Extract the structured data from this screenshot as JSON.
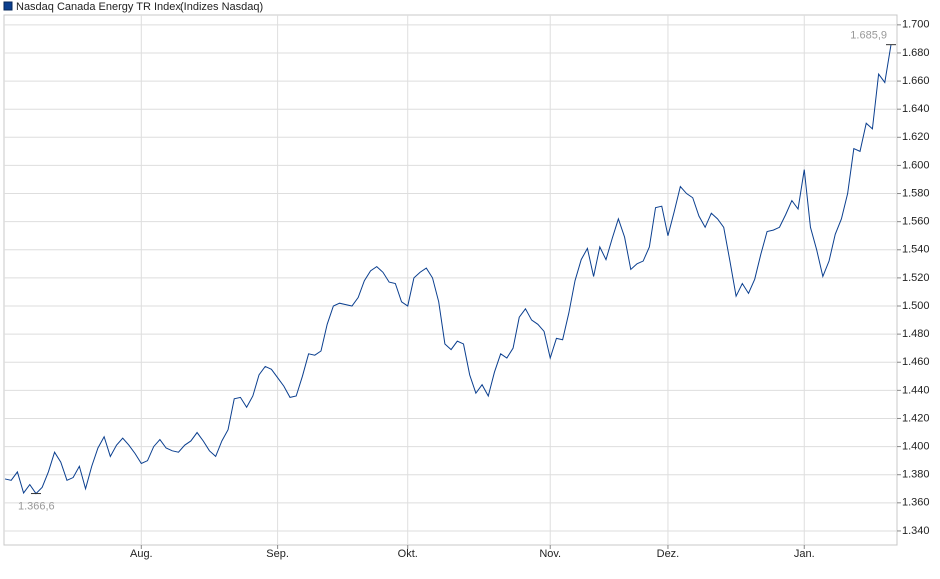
{
  "chart_data": {
    "type": "line",
    "title": "(Indizes Nasdaq)",
    "categories": [
      null,
      null,
      null,
      null,
      null,
      null,
      null,
      null,
      null,
      null,
      null,
      null,
      null,
      null,
      null,
      null,
      null,
      null,
      null,
      null,
      null,
      null,
      "Aug.",
      null,
      null,
      null,
      null,
      null,
      null,
      null,
      null,
      null,
      null,
      null,
      null,
      null,
      null,
      null,
      null,
      null,
      null,
      null,
      null,
      null,
      "Sep.",
      null,
      null,
      null,
      null,
      null,
      null,
      null,
      null,
      null,
      null,
      null,
      null,
      null,
      null,
      null,
      null,
      null,
      null,
      null,
      null,
      "Okt.",
      null,
      null,
      null,
      null,
      null,
      null,
      null,
      null,
      null,
      null,
      null,
      null,
      null,
      null,
      null,
      null,
      null,
      null,
      null,
      null,
      null,
      null,
      "Nov.",
      null,
      null,
      null,
      null,
      null,
      null,
      null,
      null,
      null,
      null,
      null,
      null,
      null,
      null,
      null,
      null,
      null,
      null,
      "Dez.",
      null,
      null,
      null,
      null,
      null,
      null,
      null,
      null,
      null,
      null,
      null,
      null,
      null,
      null,
      null,
      null,
      null,
      null,
      null,
      null,
      null,
      "Jan.",
      null,
      null,
      null,
      null,
      null,
      null,
      null,
      null,
      null,
      null,
      null,
      null,
      null,
      null
    ],
    "series": [
      {
        "name": "Nasdaq Canada Energy TR Index",
        "color": "#0b3f8f",
        "values": [
          1.377,
          1.376,
          1.382,
          1.367,
          1.373,
          1.3666,
          1.371,
          1.382,
          1.396,
          1.389,
          1.376,
          1.378,
          1.386,
          1.37,
          1.386,
          1.399,
          1.407,
          1.393,
          1.401,
          1.406,
          1.401,
          1.395,
          1.388,
          1.39,
          1.4,
          1.405,
          1.399,
          1.397,
          1.396,
          1.401,
          1.404,
          1.41,
          1.404,
          1.397,
          1.393,
          1.404,
          1.412,
          1.434,
          1.435,
          1.428,
          1.436,
          1.451,
          1.457,
          1.455,
          1.449,
          1.443,
          1.435,
          1.436,
          1.45,
          1.466,
          1.465,
          1.468,
          1.487,
          1.5,
          1.502,
          1.501,
          1.5,
          1.506,
          1.518,
          1.525,
          1.528,
          1.524,
          1.517,
          1.516,
          1.503,
          1.5,
          1.52,
          1.524,
          1.527,
          1.52,
          1.503,
          1.473,
          1.469,
          1.475,
          1.473,
          1.451,
          1.438,
          1.444,
          1.436,
          1.453,
          1.466,
          1.463,
          1.47,
          1.492,
          1.498,
          1.49,
          1.487,
          1.482,
          1.463,
          1.477,
          1.476,
          1.495,
          1.518,
          1.533,
          1.541,
          1.521,
          1.542,
          1.533,
          1.548,
          1.562,
          1.549,
          1.526,
          1.53,
          1.532,
          1.542,
          1.57,
          1.571,
          1.55,
          1.567,
          1.585,
          1.58,
          1.577,
          1.564,
          1.556,
          1.566,
          1.562,
          1.556,
          1.532,
          1.507,
          1.516,
          1.509,
          1.519,
          1.537,
          1.553,
          1.554,
          1.556,
          1.565,
          1.575,
          1.569,
          1.597,
          1.556,
          1.54,
          1.521,
          1.532,
          1.551,
          1.562,
          1.58,
          1.612,
          1.61,
          1.63,
          1.626,
          1.665,
          1.659,
          1.6859
        ],
        "value_labels": [
          null,
          null,
          null,
          null,
          null,
          "1.366,6",
          null,
          null,
          null,
          null,
          null,
          null,
          null,
          null,
          null,
          null,
          null,
          null,
          null,
          null,
          null,
          null,
          null,
          null,
          null,
          null,
          null,
          null,
          null,
          null,
          null,
          null,
          null,
          null,
          null,
          null,
          null,
          null,
          null,
          null,
          null,
          null,
          null,
          null,
          null,
          null,
          null,
          null,
          null,
          null,
          null,
          null,
          null,
          null,
          null,
          null,
          null,
          null,
          null,
          null,
          null,
          null,
          null,
          null,
          null,
          null,
          null,
          null,
          null,
          null,
          null,
          null,
          null,
          null,
          null,
          null,
          null,
          null,
          null,
          null,
          null,
          null,
          null,
          null,
          null,
          null,
          null,
          null,
          null,
          null,
          null,
          null,
          null,
          null,
          null,
          null,
          null,
          null,
          null,
          null,
          null,
          null,
          null,
          null,
          null,
          null,
          null,
          null,
          null,
          null,
          null,
          null,
          null,
          null,
          null,
          null,
          null,
          null,
          null,
          null,
          null,
          null,
          null,
          null,
          null,
          null,
          null,
          null,
          null,
          null,
          null,
          null,
          null,
          null,
          null,
          null,
          null,
          null,
          null,
          null,
          null,
          null,
          null,
          "1.685,9"
        ]
      }
    ],
    "ylim": [
      1.33,
      1.707
    ],
    "yticks": [
      {
        "value": 1.34,
        "label": "1.340"
      },
      {
        "value": 1.36,
        "label": "1.360"
      },
      {
        "value": 1.38,
        "label": "1.380"
      },
      {
        "value": 1.4,
        "label": "1.400"
      },
      {
        "value": 1.42,
        "label": "1.420"
      },
      {
        "value": 1.44,
        "label": "1.440"
      },
      {
        "value": 1.46,
        "label": "1.460"
      },
      {
        "value": 1.48,
        "label": "1.480"
      },
      {
        "value": 1.5,
        "label": "1.500"
      },
      {
        "value": 1.52,
        "label": "1.520"
      },
      {
        "value": 1.54,
        "label": "1.540"
      },
      {
        "value": 1.56,
        "label": "1.560"
      },
      {
        "value": 1.58,
        "label": "1.580"
      },
      {
        "value": 1.6,
        "label": "1.600"
      },
      {
        "value": 1.62,
        "label": "1.620"
      },
      {
        "value": 1.64,
        "label": "1.640"
      },
      {
        "value": 1.66,
        "label": "1.660"
      },
      {
        "value": 1.68,
        "label": "1.680"
      },
      {
        "value": 1.7,
        "label": "1.700"
      }
    ],
    "grid": true
  }
}
